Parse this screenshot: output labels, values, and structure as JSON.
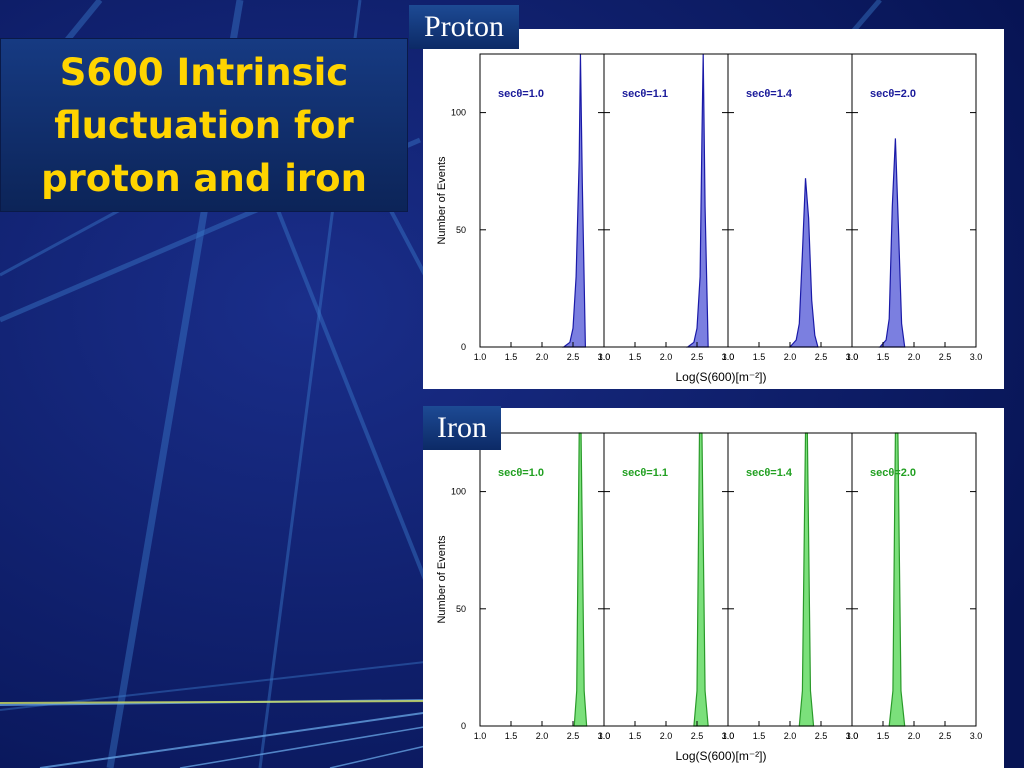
{
  "slide": {
    "title": "S600 Intrinsic\nfluctuation for\nproton and iron"
  },
  "panels": {
    "proton": {
      "label": "Proton"
    },
    "iron": {
      "label": "Iron"
    }
  },
  "colors": {
    "background": "#0a1a6a",
    "title_text": "#ffd400",
    "proton_fill": "#7b7fe0",
    "proton_line": "#1a1aa8",
    "proton_text": "#1a1a9a",
    "iron_fill": "#7be07b",
    "iron_line": "#2a9a2a",
    "iron_text": "#22a022"
  },
  "chart_data": [
    {
      "type": "area",
      "panel": "proton",
      "xlabel": "Log(S(600)[m⁻²])",
      "ylabel": "Number of Events",
      "xlim": [
        1.0,
        3.0
      ],
      "ylim": [
        0,
        125
      ],
      "x_ticks": [
        "1.0",
        "1.5",
        "2.0",
        "2.5",
        "3.0"
      ],
      "y_ticks": [
        "0",
        "50",
        "100"
      ],
      "subpanels": [
        {
          "label": "secθ=1.0",
          "x": [
            2.35,
            2.45,
            2.5,
            2.55,
            2.6,
            2.62,
            2.65,
            2.7
          ],
          "y": [
            0,
            2,
            8,
            30,
            80,
            125,
            70,
            0
          ]
        },
        {
          "label": "secθ=1.1",
          "x": [
            2.35,
            2.45,
            2.5,
            2.55,
            2.58,
            2.6,
            2.63,
            2.68
          ],
          "y": [
            0,
            2,
            8,
            30,
            90,
            125,
            60,
            0
          ]
        },
        {
          "label": "secθ=1.4",
          "x": [
            2.0,
            2.1,
            2.15,
            2.2,
            2.25,
            2.3,
            2.35,
            2.4,
            2.45
          ],
          "y": [
            0,
            3,
            10,
            40,
            72,
            55,
            20,
            5,
            0
          ]
        },
        {
          "label": "secθ=2.0",
          "x": [
            1.45,
            1.55,
            1.6,
            1.65,
            1.7,
            1.75,
            1.8,
            1.85
          ],
          "y": [
            0,
            3,
            12,
            60,
            89,
            50,
            10,
            0
          ]
        }
      ]
    },
    {
      "type": "area",
      "panel": "iron",
      "xlabel": "Log(S(600)[m⁻²])",
      "ylabel": "Number of Events",
      "xlim": [
        1.0,
        3.0
      ],
      "ylim": [
        0,
        125
      ],
      "x_ticks": [
        "1.0",
        "1.5",
        "2.0",
        "2.5",
        "3.0"
      ],
      "y_ticks": [
        "0",
        "50",
        "100"
      ],
      "subpanels": [
        {
          "label": "secθ=1.0",
          "x": [
            2.52,
            2.56,
            2.6,
            2.63,
            2.68,
            2.72
          ],
          "y": [
            0,
            15,
            125,
            125,
            15,
            0
          ]
        },
        {
          "label": "secθ=1.1",
          "x": [
            2.45,
            2.5,
            2.54,
            2.58,
            2.63,
            2.68
          ],
          "y": [
            0,
            15,
            125,
            125,
            15,
            0
          ]
        },
        {
          "label": "secθ=1.4",
          "x": [
            2.15,
            2.2,
            2.25,
            2.28,
            2.33,
            2.38
          ],
          "y": [
            0,
            15,
            125,
            125,
            15,
            0
          ]
        },
        {
          "label": "secθ=2.0",
          "x": [
            1.6,
            1.66,
            1.7,
            1.74,
            1.79,
            1.85
          ],
          "y": [
            0,
            15,
            125,
            125,
            15,
            0
          ]
        }
      ]
    }
  ]
}
